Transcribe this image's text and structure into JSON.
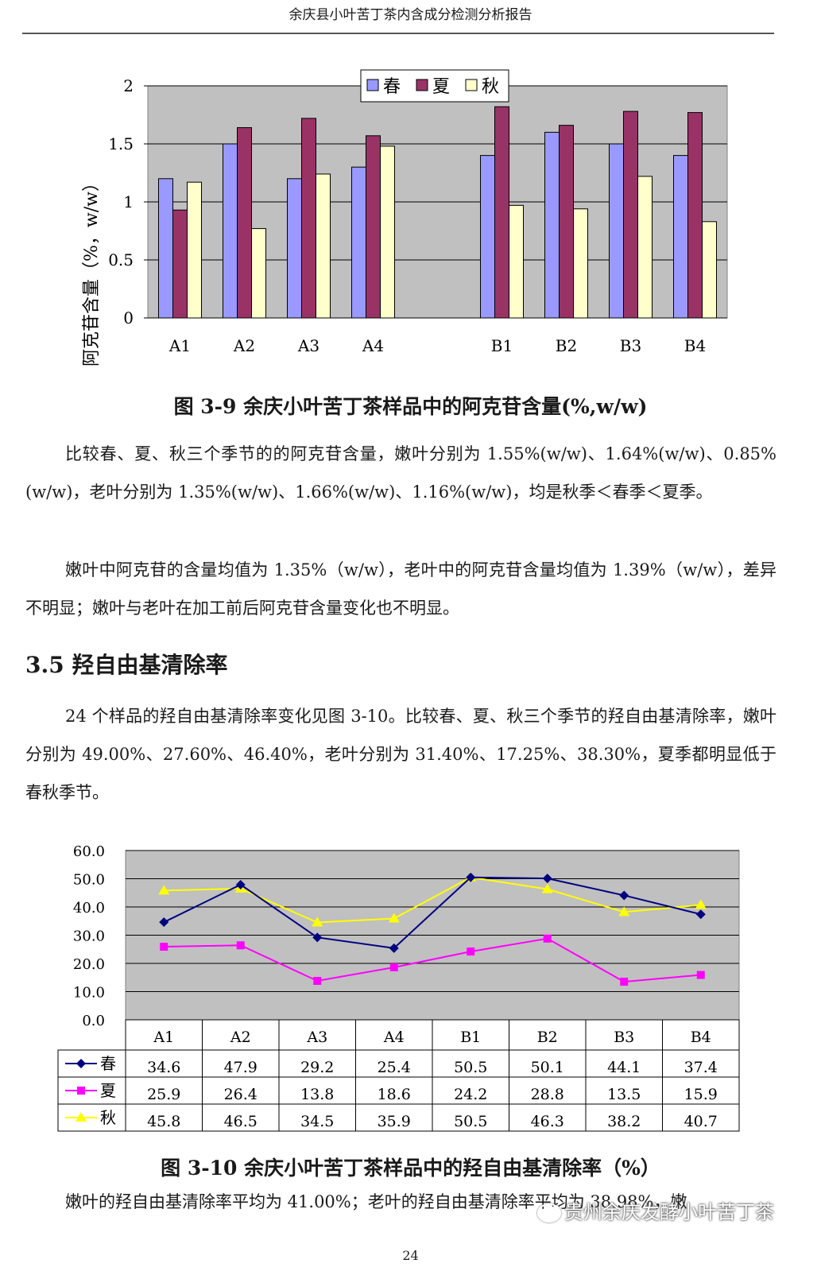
{
  "header": {
    "title": "余庆县小叶苦丁茶内含成分检测分析报告"
  },
  "figure1": {
    "caption": "图 3-9  余庆小叶苦丁茶样品中的阿克苷含量(%,w/w)",
    "colors": {
      "春": "#9999ff",
      "夏": "#993366",
      "秋": "#ffffcc"
    }
  },
  "chart_data": [
    {
      "type": "bar",
      "categories": [
        "A1",
        "A2",
        "A3",
        "A4",
        "",
        "B1",
        "B2",
        "B3",
        "B4"
      ],
      "series": [
        {
          "name": "春",
          "values": [
            1.2,
            1.5,
            1.2,
            1.3,
            null,
            1.4,
            1.6,
            1.5,
            1.4
          ]
        },
        {
          "name": "夏",
          "values": [
            0.93,
            1.64,
            1.72,
            1.57,
            null,
            1.82,
            1.66,
            1.78,
            1.77
          ]
        },
        {
          "name": "秋",
          "values": [
            1.17,
            0.77,
            1.24,
            1.48,
            null,
            0.97,
            0.94,
            1.22,
            0.83
          ]
        }
      ],
      "ylabel": "阿克苷含量（%，w/w）",
      "yticks": [
        "0",
        "0.5",
        "1",
        "1.5",
        "2"
      ],
      "ylim": [
        0,
        2
      ],
      "grid": true,
      "legend": "top-center"
    },
    {
      "type": "line",
      "categories": [
        "A1",
        "A2",
        "A3",
        "A4",
        "B1",
        "B2",
        "B3",
        "B4"
      ],
      "series": [
        {
          "name": "春",
          "values": [
            34.6,
            47.9,
            29.2,
            25.4,
            50.5,
            50.1,
            44.1,
            37.4
          ],
          "labels": [
            "34.6",
            "47.9",
            "29.2",
            "25.4",
            "50.5",
            "50.1",
            "44.1",
            "37.4"
          ]
        },
        {
          "name": "夏",
          "values": [
            25.9,
            26.4,
            13.8,
            18.6,
            24.2,
            28.8,
            13.5,
            15.9
          ],
          "labels": [
            "25.9",
            "26.4",
            "13.8",
            "18.6",
            "24.2",
            "28.8",
            "13.5",
            "15.9"
          ]
        },
        {
          "name": "秋",
          "values": [
            45.8,
            46.5,
            34.5,
            35.9,
            50.5,
            46.3,
            38.2,
            40.7
          ],
          "labels": [
            "45.8",
            "46.5",
            "34.5",
            "35.9",
            "50.5",
            "46.3",
            "38.2",
            "40.7"
          ]
        }
      ],
      "yticks": [
        "0.0",
        "10.0",
        "20.0",
        "30.0",
        "40.0",
        "50.0",
        "60.0"
      ],
      "ylim": [
        0,
        60
      ],
      "grid": true,
      "legend": "data-table"
    }
  ],
  "para1": "比较春、夏、秋三个季节的的阿克苷含量，嫩叶分别为 1.55%(w/w)、1.64%(w/w)、0.85%(w/w)，老叶分别为 1.35%(w/w)、1.66%(w/w)、1.16%(w/w)，均是秋季＜春季＜夏季。",
  "para2": "嫩叶中阿克苷的含量均值为 1.35%（w/w），老叶中的阿克苷含量均值为 1.39%（w/w），差异不明显；嫩叶与老叶在加工前后阿克苷含量变化也不明显。",
  "section": {
    "heading": "3.5  羟自由基清除率"
  },
  "para3": "24 个样品的羟自由基清除率变化见图 3-10。比较春、夏、秋三个季节的羟自由基清除率，嫩叶分别为 49.00%、27.60%、46.40%，老叶分别为 31.40%、17.25%、38.30%，夏季都明显低于春秋季节。",
  "figure2": {
    "caption": "图 3-10  余庆小叶苦丁茶样品中的羟自由基清除率（%）",
    "colors": {
      "春": "#000080",
      "夏": "#ff00ff",
      "秋": "#ffff00"
    }
  },
  "para4": "嫩叶的羟自由基清除率平均为 41.00%；老叶的羟自由基清除率平均为 38.98%，嫩",
  "page_number": "24",
  "watermark": "贵州余庆发酵小叶苦丁茶"
}
